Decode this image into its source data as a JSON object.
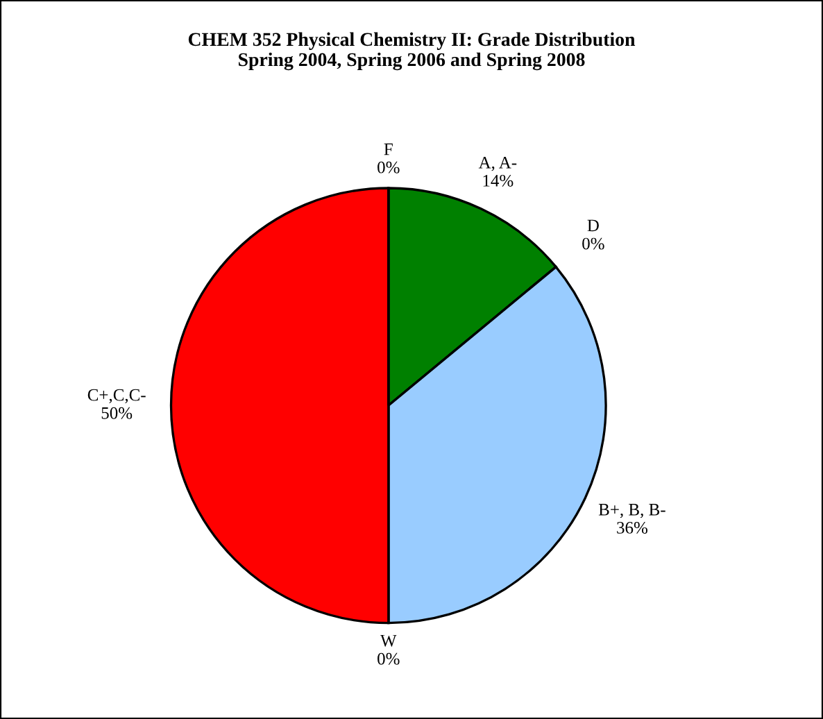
{
  "chart_data": {
    "type": "pie",
    "title": "CHEM 352 Physical Chemistry II: Grade Distribution\nSpring 2004, Spring 2006 and Spring 2008",
    "categories": [
      "A, A-",
      "D",
      "B+, B, B-",
      "W",
      "C+,C,C-",
      "F"
    ],
    "values": [
      14,
      0,
      36,
      0,
      50,
      0
    ],
    "value_labels": [
      "14%",
      "0%",
      "36%",
      "0%",
      "50%",
      "0%"
    ],
    "colors": [
      "#008000",
      "#ffff00",
      "#99ccff",
      "#800080",
      "#ff0000",
      "#000080"
    ],
    "legend": false
  }
}
